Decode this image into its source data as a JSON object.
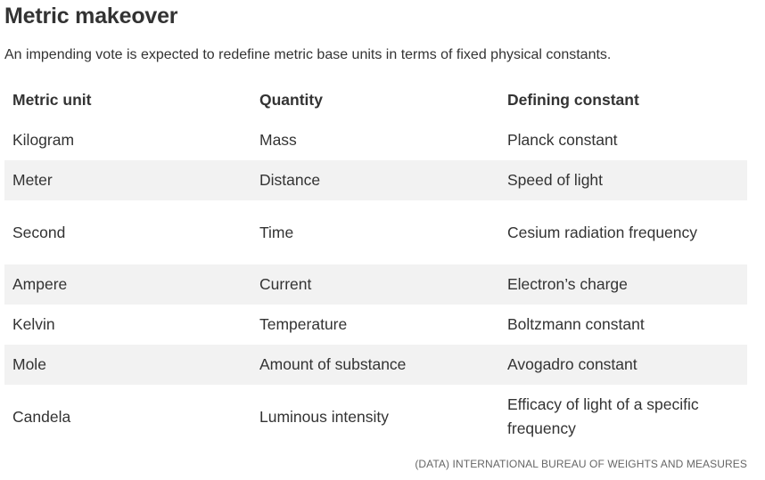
{
  "title": "Metric makeover",
  "subtitle": "An impending vote is expected to redefine metric base units in terms of fixed physical constants.",
  "source": "(DATA) INTERNATIONAL BUREAU OF WEIGHTS AND MEASURES",
  "colors": {
    "row_shade": "#f2f2f2",
    "text": "#333333",
    "source_text": "#666666"
  },
  "chart_data": {
    "type": "table",
    "title": "Metric makeover",
    "subtitle": "An impending vote is expected to redefine metric base units in terms of fixed physical constants.",
    "columns": [
      "Metric unit",
      "Quantity",
      "Defining constant"
    ],
    "rows": [
      [
        "Kilogram",
        "Mass",
        "Planck constant"
      ],
      [
        "Meter",
        "Distance",
        "Speed of light"
      ],
      [
        "Second",
        "Time",
        "Cesium radiation frequency"
      ],
      [
        "Ampere",
        "Current",
        "Electron’s charge"
      ],
      [
        "Kelvin",
        "Temperature",
        "Boltzmann constant"
      ],
      [
        "Mole",
        "Amount of substance",
        "Avogadro constant"
      ],
      [
        "Candela",
        "Luminous intensity",
        "Efficacy of light of a specific frequency"
      ]
    ]
  }
}
